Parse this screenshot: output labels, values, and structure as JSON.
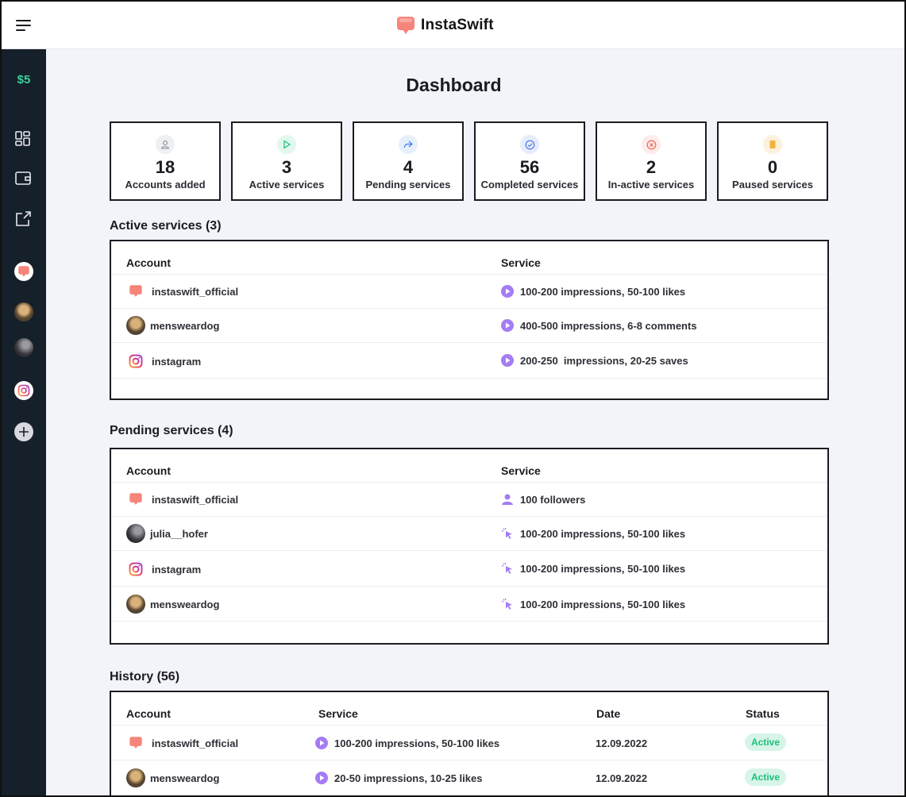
{
  "app": {
    "name": "InstaSwift"
  },
  "sidebar": {
    "balance": "$5"
  },
  "page": {
    "title": "Dashboard"
  },
  "stats": [
    {
      "value": "18",
      "label": "Accounts added",
      "icon": "user-icon"
    },
    {
      "value": "3",
      "label": "Active services",
      "icon": "play-icon"
    },
    {
      "value": "4",
      "label": "Pending services",
      "icon": "share-arrow-icon"
    },
    {
      "value": "56",
      "label": "Completed services",
      "icon": "check-circle-icon"
    },
    {
      "value": "2",
      "label": "In-active services",
      "icon": "x-circle-icon"
    },
    {
      "value": "0",
      "label": "Paused services",
      "icon": "pause-square-icon"
    }
  ],
  "active": {
    "title": "Active services (3)",
    "col_account": "Account",
    "col_service": "Service",
    "rows": [
      {
        "account": "instaswift_official",
        "service": "100-200 impressions, 50-100 likes"
      },
      {
        "account": "mensweardog",
        "service": "400-500 impressions, 6-8 comments"
      },
      {
        "account": "instagram",
        "service": "200-250  impressions, 20-25 saves"
      }
    ]
  },
  "pending": {
    "title": "Pending services (4)",
    "col_account": "Account",
    "col_service": "Service",
    "rows": [
      {
        "account": "instaswift_official",
        "service": "100 followers"
      },
      {
        "account": "julia__hofer",
        "service": "100-200 impressions, 50-100 likes"
      },
      {
        "account": "instagram",
        "service": "100-200 impressions, 50-100 likes"
      },
      {
        "account": "mensweardog",
        "service": "100-200 impressions, 50-100 likes"
      }
    ]
  },
  "history": {
    "title": "History (56)",
    "col_account": "Account",
    "col_service": "Service",
    "col_date": "Date",
    "col_status": "Status",
    "rows": [
      {
        "account": "instaswift_official",
        "service": "100-200 impressions, 50-100 likes",
        "date": "12.09.2022",
        "status": "Active"
      },
      {
        "account": "mensweardog",
        "service": "20-50 impressions, 10-25 likes",
        "date": "12.09.2022",
        "status": "Active"
      }
    ]
  },
  "colors": {
    "accent": "#9b6cf0",
    "brand": "#f0766a",
    "status_active": "#1fbf7c",
    "sidebar": "#16202b"
  }
}
